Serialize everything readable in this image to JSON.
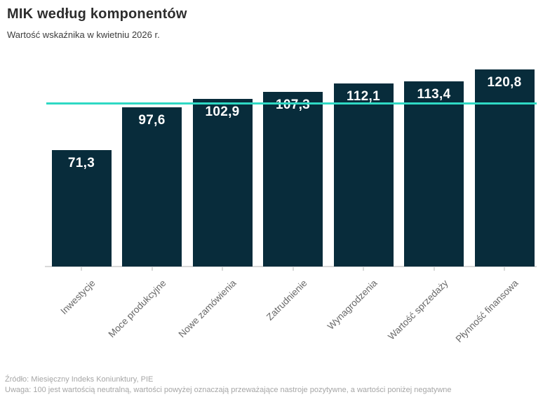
{
  "header": {
    "title": "MIK według komponentów",
    "subtitle": "Wartość wskaźnika w kwietniu 2026 r."
  },
  "chart_data": {
    "type": "bar",
    "title": "MIK według komponentów",
    "subtitle": "Wartość wskaźnika w kwietniu 2026 r.",
    "categories": [
      "Inwestycje",
      "Moce produkcyjne",
      "Nowe zamówienia",
      "Zatrudnienie",
      "Wynagrodzenia",
      "Wartość sprzedaży",
      "Płynność finansowa"
    ],
    "values": [
      71.3,
      97.6,
      102.9,
      107.3,
      112.1,
      113.4,
      120.8
    ],
    "value_labels": [
      "71,3",
      "97,6",
      "102,9",
      "107,3",
      "112,1",
      "113,4",
      "120,8"
    ],
    "reference_line": {
      "value": 100
    },
    "ylim": [
      0,
      130
    ],
    "grid": false,
    "legend": false,
    "bar_color": "#082c3b",
    "reference_line_color": "#2fd9c4",
    "axis_color": "#d9d9d9",
    "value_label_color": "#ffffff",
    "category_label_color": "#686868"
  },
  "footer": {
    "source": "Źródło: Miesięczny Indeks Koniunktury, PIE",
    "note": "Uwaga: 100 jest wartością neutralną, wartości powyżej oznaczają przeważające nastroje pozytywne, a wartości poniżej negatywne"
  }
}
